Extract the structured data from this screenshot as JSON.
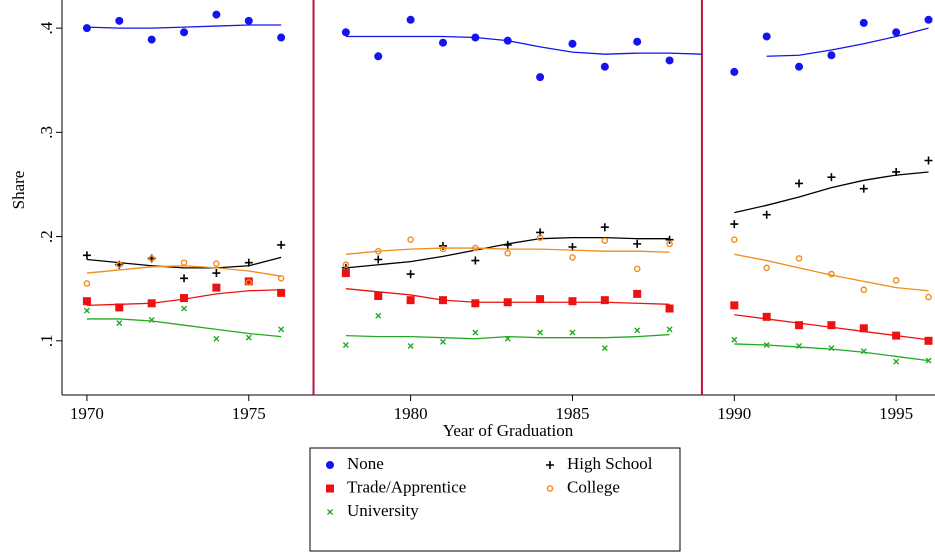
{
  "chart_data": {
    "type": "scatter",
    "x_label": "Year of Graduation",
    "y_label": "Share",
    "x": [
      1970,
      1971,
      1972,
      1973,
      1974,
      1975,
      1976,
      1977,
      1978,
      1979,
      1980,
      1981,
      1982,
      1983,
      1984,
      1985,
      1986,
      1987,
      1988,
      1989,
      1990,
      1991,
      1992,
      1993,
      1994,
      1995,
      1996
    ],
    "xlim": [
      1969.23,
      1996.2
    ],
    "ylim": [
      0.048,
      0.427
    ],
    "xticks": [
      1970,
      1975,
      1980,
      1985,
      1990,
      1995
    ],
    "yticks": [
      {
        "value": 0.1,
        "label": ".1"
      },
      {
        "value": 0.2,
        "label": ".2"
      },
      {
        "value": 0.3,
        "label": ".3"
      },
      {
        "value": 0.4,
        "label": ".4"
      }
    ],
    "vlines": [
      1977,
      1989
    ],
    "vline_color": "#c0143c",
    "series": [
      {
        "name": "None",
        "color": "#1414f0",
        "marker": "circle",
        "values": [
          0.4,
          0.407,
          0.389,
          0.396,
          0.413,
          0.407,
          0.391,
          null,
          0.396,
          0.373,
          0.408,
          0.386,
          0.391,
          0.388,
          0.353,
          0.385,
          0.363,
          0.387,
          0.369,
          null,
          0.358,
          0.392,
          0.363,
          0.374,
          0.405,
          0.396,
          0.408
        ],
        "fit": [
          0.401,
          0.4,
          0.4,
          0.401,
          0.402,
          0.403,
          0.403,
          null,
          0.392,
          0.392,
          0.392,
          0.392,
          0.391,
          0.388,
          0.382,
          0.377,
          0.375,
          0.376,
          0.376,
          0.375,
          null,
          0.373,
          0.374,
          0.379,
          0.385,
          0.392,
          0.4,
          0.406
        ]
      },
      {
        "name": "High School",
        "color": "#000000",
        "marker": "plus",
        "values": [
          0.182,
          0.173,
          0.179,
          0.16,
          0.165,
          0.175,
          0.192,
          null,
          0.17,
          0.178,
          0.164,
          0.191,
          0.177,
          0.192,
          0.204,
          0.19,
          0.209,
          0.193,
          0.197,
          null,
          0.212,
          0.221,
          0.251,
          0.257,
          0.246,
          0.262,
          0.273
        ],
        "fit": [
          0.178,
          0.175,
          0.172,
          0.17,
          0.17,
          0.172,
          0.18,
          null,
          0.17,
          0.173,
          0.176,
          0.181,
          0.187,
          0.193,
          0.198,
          0.199,
          0.199,
          0.198,
          0.198,
          null,
          0.223,
          0.23,
          0.238,
          0.247,
          0.254,
          0.259,
          0.262
        ]
      },
      {
        "name": "Trade/Apprentice",
        "color": "#ee1111",
        "marker": "square",
        "values": [
          0.138,
          0.132,
          0.136,
          0.141,
          0.151,
          0.157,
          0.146,
          null,
          0.165,
          0.143,
          0.139,
          0.139,
          0.136,
          0.137,
          0.14,
          0.138,
          0.139,
          0.145,
          0.131,
          null,
          0.134,
          0.123,
          0.115,
          0.115,
          0.112,
          0.105,
          0.1
        ],
        "fit": [
          0.134,
          0.135,
          0.136,
          0.14,
          0.145,
          0.148,
          0.149,
          null,
          0.15,
          0.147,
          0.144,
          0.139,
          0.137,
          0.137,
          0.137,
          0.137,
          0.137,
          0.136,
          0.135,
          null,
          0.125,
          0.121,
          0.117,
          0.113,
          0.109,
          0.105,
          0.101
        ]
      },
      {
        "name": "College",
        "color": "#f28c1a",
        "marker": "ring",
        "values": [
          0.155,
          0.173,
          0.179,
          0.175,
          0.174,
          0.156,
          0.16,
          null,
          0.173,
          0.186,
          0.197,
          0.188,
          0.189,
          0.184,
          0.199,
          0.18,
          0.196,
          0.169,
          0.193,
          null,
          0.197,
          0.17,
          0.179,
          0.164,
          0.149,
          0.158,
          0.142
        ],
        "fit": [
          0.165,
          0.168,
          0.171,
          0.172,
          0.17,
          0.167,
          0.162,
          null,
          0.183,
          0.186,
          0.188,
          0.189,
          0.189,
          0.188,
          0.188,
          0.187,
          0.186,
          0.186,
          0.185,
          null,
          0.183,
          0.177,
          0.17,
          0.163,
          0.157,
          0.151,
          0.148
        ]
      },
      {
        "name": "University",
        "color": "#22aa22",
        "marker": "cross",
        "values": [
          0.129,
          0.117,
          0.12,
          0.131,
          0.102,
          0.103,
          0.111,
          null,
          0.096,
          0.124,
          0.095,
          0.099,
          0.108,
          0.102,
          0.108,
          0.108,
          0.093,
          0.11,
          0.111,
          null,
          0.101,
          0.096,
          0.095,
          0.093,
          0.09,
          0.08,
          0.081
        ],
        "fit": [
          0.121,
          0.121,
          0.119,
          0.115,
          0.111,
          0.107,
          0.104,
          null,
          0.105,
          0.104,
          0.104,
          0.103,
          0.102,
          0.104,
          0.103,
          0.103,
          0.103,
          0.104,
          0.106,
          null,
          0.097,
          0.096,
          0.094,
          0.092,
          0.089,
          0.085,
          0.081
        ]
      }
    ]
  }
}
